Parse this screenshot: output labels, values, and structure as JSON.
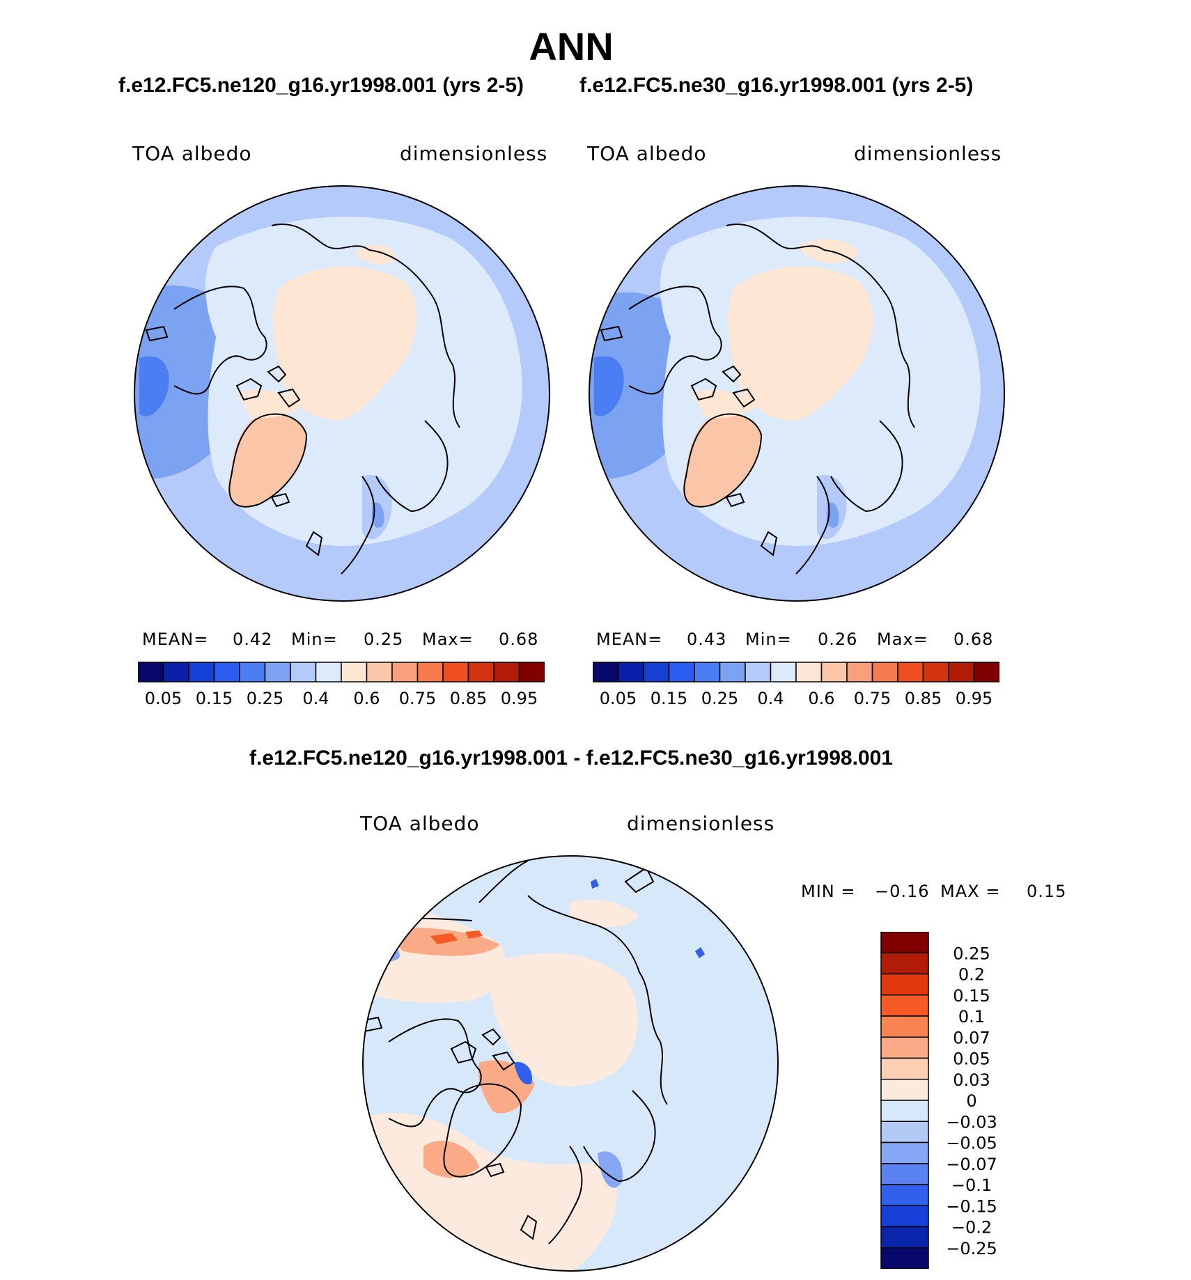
{
  "title": "ANN",
  "panels": [
    {
      "case_title": "f.e12.FC5.ne120_g16.yr1998.001 (yrs 2-5)",
      "variable": "TOA albedo",
      "units": "dimensionless",
      "mean_label": "MEAN=",
      "mean_value": "0.42",
      "min_label": "Min=",
      "min_value": "0.25",
      "max_label": "Max=",
      "max_value": "0.68"
    },
    {
      "case_title": "f.e12.FC5.ne30_g16.yr1998.001 (yrs 2-5)",
      "variable": "TOA albedo",
      "units": "dimensionless",
      "mean_label": "MEAN=",
      "mean_value": "0.43",
      "min_label": "Min=",
      "min_value": "0.26",
      "max_label": "Max=",
      "max_value": "0.68"
    }
  ],
  "difference": {
    "title": "f.e12.FC5.ne120_g16.yr1998.001 - f.e12.FC5.ne30_g16.yr1998.001",
    "variable": "TOA albedo",
    "units": "dimensionless",
    "min_label": "MIN =",
    "min_value": "−0.16",
    "max_label": "MAX =",
    "max_value": "0.15"
  },
  "chart_data": [
    {
      "type": "heatmap",
      "projection": "north polar stereographic",
      "title": "f.e12.FC5.ne120_g16.yr1998.001 (yrs 2-5)",
      "variable": "TOA albedo",
      "units": "dimensionless",
      "mean": 0.42,
      "min": 0.25,
      "max": 0.68,
      "colorbar": {
        "orientation": "horizontal",
        "tick_labels": [
          "0.05",
          "0.15",
          "0.25",
          "0.4",
          "0.6",
          "0.75",
          "0.85",
          "0.95"
        ],
        "colors": [
          "#08086b",
          "#0a20a8",
          "#1440d4",
          "#2a5cf0",
          "#4a7ef2",
          "#7ca2f2",
          "#b4cafa",
          "#dceafb",
          "#fde6d4",
          "#fbc6a8",
          "#f8a07c",
          "#f57a4e",
          "#ee4e22",
          "#d23410",
          "#b01c08",
          "#800000"
        ]
      }
    },
    {
      "type": "heatmap",
      "projection": "north polar stereographic",
      "title": "f.e12.FC5.ne30_g16.yr1998.001 (yrs 2-5)",
      "variable": "TOA albedo",
      "units": "dimensionless",
      "mean": 0.43,
      "min": 0.26,
      "max": 0.68,
      "colorbar": {
        "orientation": "horizontal",
        "tick_labels": [
          "0.05",
          "0.15",
          "0.25",
          "0.4",
          "0.6",
          "0.75",
          "0.85",
          "0.95"
        ],
        "colors": [
          "#08086b",
          "#0a20a8",
          "#1440d4",
          "#2a5cf0",
          "#4a7ef2",
          "#7ca2f2",
          "#b4cafa",
          "#dceafb",
          "#fde6d4",
          "#fbc6a8",
          "#f8a07c",
          "#f57a4e",
          "#ee4e22",
          "#d23410",
          "#b01c08",
          "#800000"
        ]
      }
    },
    {
      "type": "heatmap",
      "projection": "north polar stereographic",
      "title": "f.e12.FC5.ne120_g16.yr1998.001 - f.e12.FC5.ne30_g16.yr1998.001",
      "variable": "TOA albedo",
      "units": "dimensionless",
      "min": -0.16,
      "max": 0.15,
      "colorbar": {
        "orientation": "vertical",
        "tick_labels": [
          "0.25",
          "0.2",
          "0.15",
          "0.1",
          "0.07",
          "0.05",
          "0.03",
          "0",
          "−0.03",
          "−0.05",
          "−0.07",
          "−0.1",
          "−0.15",
          "−0.2",
          "−0.25"
        ],
        "colors": [
          "#800000",
          "#b01c08",
          "#e03a0c",
          "#f65a26",
          "#f88454",
          "#fbaa88",
          "#fdd0b4",
          "#fdeade",
          "#d8e8fb",
          "#b2cbf6",
          "#86a8f4",
          "#5a82f0",
          "#3060ec",
          "#1640d8",
          "#0a24aa",
          "#08086b"
        ]
      }
    }
  ]
}
